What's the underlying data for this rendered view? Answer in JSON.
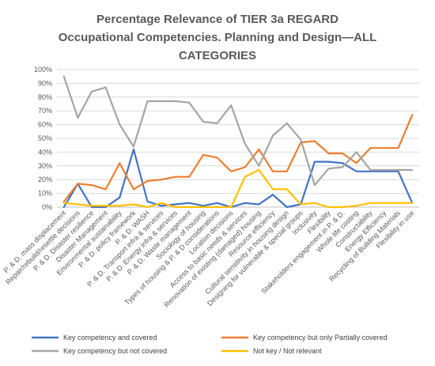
{
  "chart_data": {
    "type": "line",
    "title_lines": [
      "Percentage Relevance of TIER 3a REGARD",
      "Occupational Competencies. Planning and Design—ALL",
      "CATEGORIES"
    ],
    "xlabel": "",
    "ylabel": "",
    "ylim": [
      0,
      100
    ],
    "y_ticks": [
      "0%",
      "10%",
      "20%",
      "30%",
      "40%",
      "50%",
      "60%",
      "70%",
      "80%",
      "90%",
      "100%"
    ],
    "grid": true,
    "legend_position": "bottom",
    "categories": [
      "P. & D. mass displacement",
      "Repair/rebuild/resettle decisions",
      "P. & D. Disaster resilience",
      "Disaster Management",
      "Environmental sustainability",
      "P. & D. policy framework",
      "P. & D. WASH",
      "P. & D. Transport infra & services",
      "P. & D. Energy infra & services",
      "P. & D. Waste management",
      "Sociology of housing",
      "Types of housing & P. & D considerations",
      "Location decisions",
      "Access to basic needs & services",
      "Renovation of existing (damaged) housing",
      "Resource efficiency",
      "Cultural sensitivity in housing design",
      "Designing for vulnerable & special groups",
      "Inclusivity",
      "Flexibility",
      "Stakeholders engagement in P. & D.",
      "Whole life costing",
      "Constructability",
      "Energy Efficiency",
      "Recycling of Building Materials",
      "Flexibility in use"
    ],
    "series": [
      {
        "name": "Key competency and covered",
        "color": "#4472C4",
        "values": [
          0,
          17,
          0,
          0,
          7,
          42,
          4,
          1,
          2,
          3,
          1,
          3,
          0,
          3,
          2,
          9,
          0,
          2,
          33,
          33,
          32,
          26,
          26,
          26,
          26,
          3
        ]
      },
      {
        "name": "Key competency but only Partially covered",
        "color": "#ED7D31",
        "values": [
          4,
          17,
          16,
          13,
          32,
          13,
          19,
          20,
          22,
          22,
          38,
          36,
          26,
          29,
          42,
          26,
          26,
          47,
          48,
          39,
          39,
          32,
          43,
          43,
          43,
          67
        ]
      },
      {
        "name": "Key competency but not covered",
        "color": "#A5A5A5",
        "values": [
          95,
          65,
          84,
          87,
          60,
          44,
          77,
          77,
          77,
          76,
          62,
          61,
          74,
          46,
          30,
          52,
          61,
          49,
          16,
          28,
          29,
          40,
          27,
          27,
          27,
          27
        ]
      },
      {
        "name": "Not key / Not relevant",
        "color": "#FFC000",
        "values": [
          3,
          2,
          1,
          1,
          1,
          2,
          0,
          3,
          0,
          0,
          0,
          0,
          0,
          22,
          27,
          13,
          13,
          2,
          3,
          0,
          0,
          1,
          3,
          3,
          3,
          3
        ]
      }
    ]
  }
}
